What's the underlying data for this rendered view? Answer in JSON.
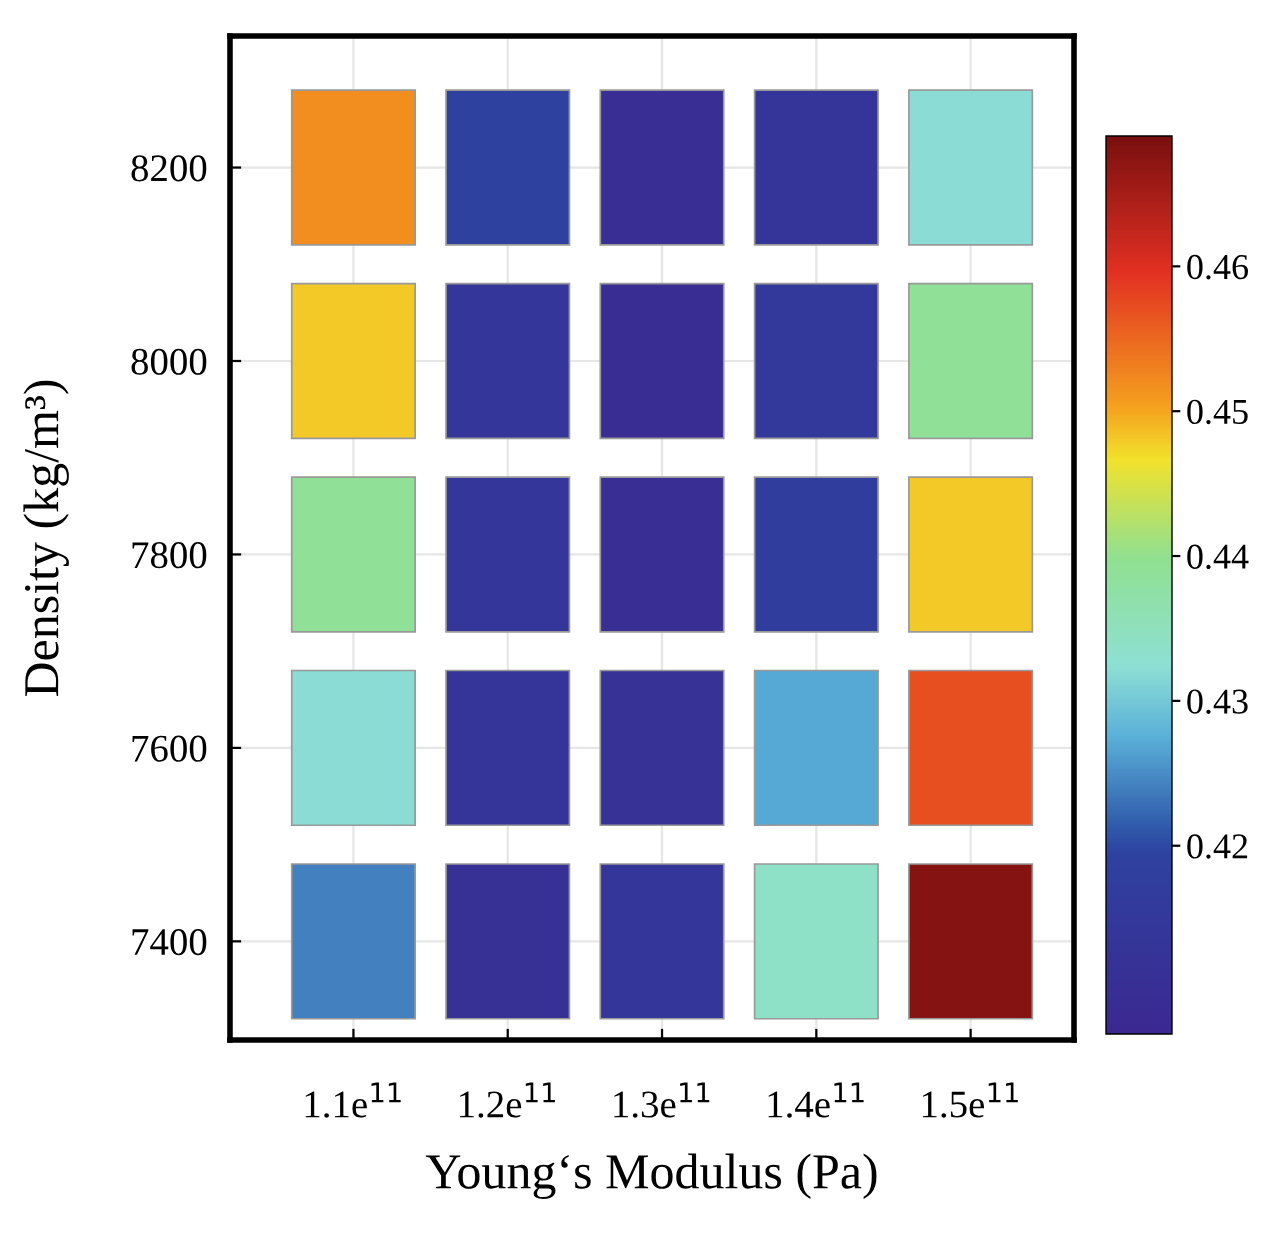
{
  "chart_data": {
    "type": "heatmap",
    "xlabel": "Young‘s Modulus (Pa)",
    "ylabel": "Density (kg/m³)",
    "categories": [
      "1.1e$^{11}$",
      "1.2e$^{11}$",
      "1.3e$^{11}$",
      "1.4e$^{11}$",
      "1.5e$^{11}$"
    ],
    "y_categories": [
      "8200",
      "8000",
      "7800",
      "7600",
      "7400"
    ],
    "cells": [
      [
        0.452,
        0.419,
        0.41,
        0.413,
        0.432
      ],
      [
        0.448,
        0.414,
        0.409,
        0.415,
        0.439
      ],
      [
        0.439,
        0.414,
        0.41,
        0.417,
        0.448
      ],
      [
        0.432,
        0.413,
        0.412,
        0.427,
        0.457
      ],
      [
        0.424,
        0.411,
        0.414,
        0.434,
        0.468
      ]
    ],
    "clim": [
      0.407,
      0.469
    ],
    "cticks": [
      0.42,
      0.43,
      0.44,
      0.45,
      0.46
    ],
    "grid": true
  }
}
